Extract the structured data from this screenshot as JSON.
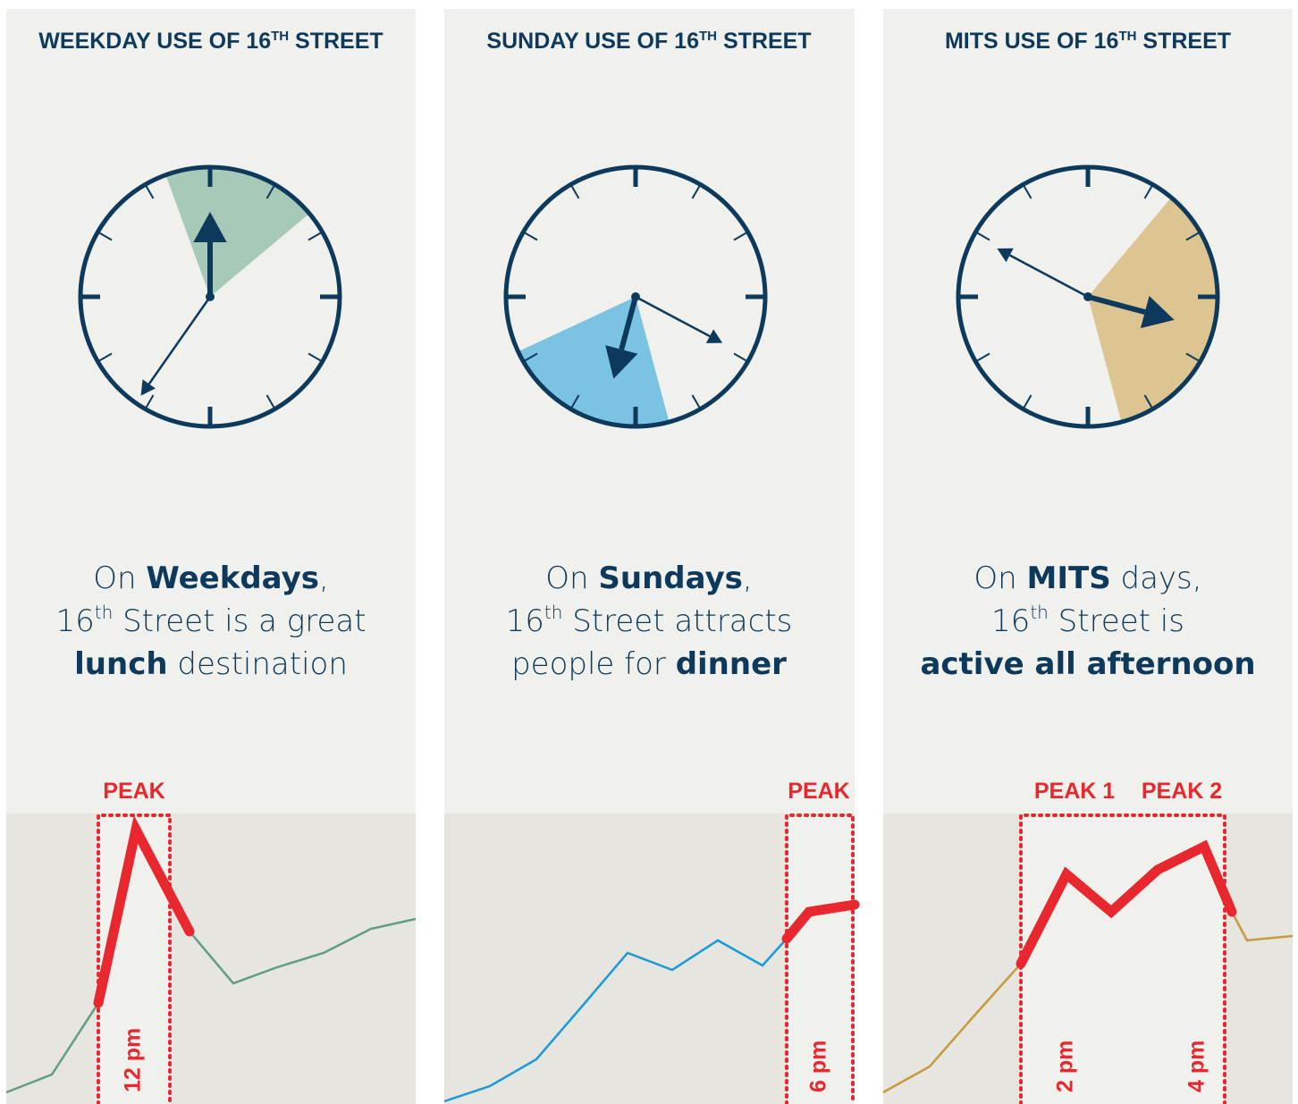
{
  "panels": [
    {
      "title": {
        "pre": "WEEKDAY USE OF 16",
        "sup": "TH",
        "post": " STREET"
      },
      "caption": [
        [
          {
            "t": "On "
          },
          {
            "t": "Weekdays",
            "s": "bold"
          },
          {
            "t": ","
          }
        ],
        [
          {
            "t": "16"
          },
          {
            "t": "th",
            "s": "sup"
          },
          {
            "t": " Street is a great"
          }
        ],
        [
          {
            "t": "lunch",
            "s": "bold"
          },
          {
            "t": " destination"
          }
        ]
      ],
      "peaks": [
        "PEAK"
      ],
      "times": [
        "12 pm"
      ]
    },
    {
      "title": {
        "pre": "SUNDAY USE OF 16",
        "sup": "TH",
        "post": " STREET"
      },
      "caption": [
        [
          {
            "t": "On "
          },
          {
            "t": "Sundays",
            "s": "bold"
          },
          {
            "t": ","
          }
        ],
        [
          {
            "t": "16"
          },
          {
            "t": "th",
            "s": "sup"
          },
          {
            "t": " Street attracts"
          }
        ],
        [
          {
            "t": "people for "
          },
          {
            "t": "dinner",
            "s": "bold"
          }
        ]
      ],
      "peaks": [
        "PEAK"
      ],
      "times": [
        "6 pm"
      ]
    },
    {
      "title": {
        "pre": "MITS USE OF 16",
        "sup": "TH",
        "post": " STREET"
      },
      "caption": [
        [
          {
            "t": "On "
          },
          {
            "t": "MITS",
            "s": "bold"
          },
          {
            "t": " days,"
          }
        ],
        [
          {
            "t": "16"
          },
          {
            "t": "th",
            "s": "sup"
          },
          {
            "t": " Street is"
          }
        ],
        [
          {
            "t": "active all afternoon",
            "s": "bold"
          }
        ]
      ],
      "peaks": [
        "PEAK 1",
        "PEAK 2"
      ],
      "times": [
        "2 pm",
        "4 pm"
      ]
    }
  ]
}
